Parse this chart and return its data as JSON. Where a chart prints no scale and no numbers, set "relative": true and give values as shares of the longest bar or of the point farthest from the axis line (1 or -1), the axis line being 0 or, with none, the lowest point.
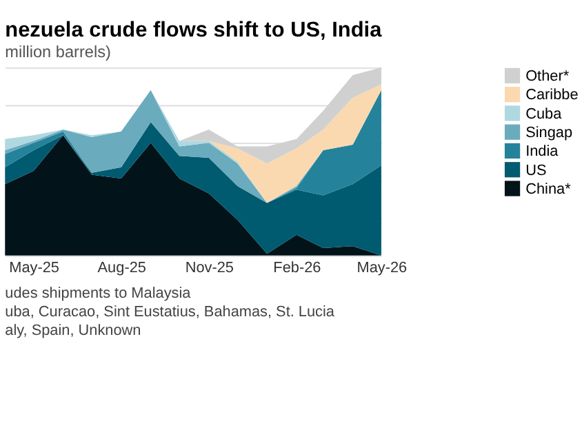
{
  "chart_data": {
    "type": "area",
    "stacked": true,
    "relative": true,
    "title": "nezuela crude flows shift to US, India",
    "subtitle": "million barrels)",
    "x": [
      "2025-04",
      "2025-05",
      "2025-06",
      "2025-07",
      "2025-08",
      "2025-09",
      "2025-10",
      "2025-11",
      "2025-12",
      "2026-01",
      "2026-02",
      "2026-03",
      "2026-04",
      "2026-05"
    ],
    "xlim": [
      "2025-04",
      "2026-05"
    ],
    "xticks": [
      {
        "value": "2025-05",
        "label": "May-25"
      },
      {
        "value": "2025-08",
        "label": "Aug-25"
      },
      {
        "value": "2025-11",
        "label": "Nov-25"
      },
      {
        "value": "2026-02",
        "label": "Feb-26"
      },
      {
        "value": "2026-05",
        "label": "May-26"
      }
    ],
    "series": [
      {
        "name": "China*",
        "color": "#03131a",
        "values": [
          0.38,
          0.45,
          0.64,
          0.43,
          0.41,
          0.6,
          0.41,
          0.33,
          0.19,
          0.01,
          0.11,
          0.04,
          0.05,
          0
        ]
      },
      {
        "name": "US",
        "color": "#005a70",
        "values": [
          0.09,
          0.11,
          0,
          0.01,
          0.06,
          0.11,
          0.12,
          0.19,
          0.18,
          0.27,
          0.24,
          0.28,
          0.33,
          0.48
        ]
      },
      {
        "name": "India",
        "color": "#24839b",
        "values": [
          0.07,
          0.04,
          0.02,
          0,
          null,
          null,
          null,
          null,
          null,
          0,
          0.01,
          0.24,
          0.21,
          0.4
        ]
      },
      {
        "name": "Singap",
        "color": "#6aabbd",
        "values": [
          0.02,
          0.01,
          0.01,
          0.19,
          0.19,
          0.17,
          0.05,
          0.08,
          0.12,
          0,
          0.01,
          0,
          null,
          null
        ]
      },
      {
        "name": "Cuba",
        "color": "#b0d8e0",
        "values": [
          0.06,
          0.03,
          0,
          0.01,
          0,
          0,
          0.03,
          0.01,
          0.01,
          0,
          null,
          null,
          null,
          null
        ]
      },
      {
        "name": "Caribbe",
        "color": "#fad9b0",
        "values": [
          null,
          null,
          null,
          null,
          null,
          null,
          null,
          0,
          0.07,
          0.21,
          0.2,
          0.11,
          0.25,
          0.03
        ]
      },
      {
        "name": "Other*",
        "color": "#d0d0d0",
        "values": [
          null,
          null,
          null,
          null,
          null,
          null,
          0,
          0.06,
          0.01,
          0.09,
          0.05,
          0.1,
          0.12,
          0.09
        ]
      }
    ],
    "grid": "y",
    "legend": "right",
    "annotations": [
      "udes shipments to Malaysia",
      "uba, Curacao, Sint Eustatius, Bahamas, St. Lucia",
      "aly, Spain, Unknown"
    ]
  }
}
